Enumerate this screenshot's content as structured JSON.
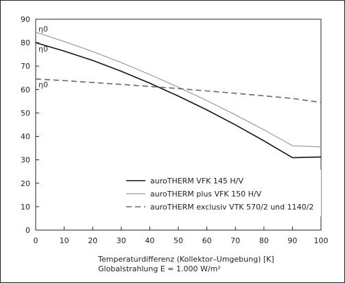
{
  "chart_data": {
    "type": "line",
    "title": "",
    "xlabel": "Temperaturdifferenz (Kollektor–Umgebung) [K]",
    "xlabel_line2": "Globalstrahlung E = 1.000 W/m²",
    "ylabel": "",
    "xlim": [
      0,
      100
    ],
    "ylim": [
      0,
      90
    ],
    "x_ticks": [
      "0",
      "10",
      "20",
      "30",
      "40",
      "50",
      "60",
      "70",
      "80",
      "90",
      "100"
    ],
    "y_ticks": [
      "0",
      "10",
      "20",
      "30",
      "40",
      "50",
      "60",
      "70",
      "80",
      "90"
    ],
    "grid": false,
    "legend_position": "lower-center",
    "series": [
      {
        "name": "auroTHERM VFK 145 H/V",
        "style": "solid",
        "color": "#111111",
        "x": [
          0,
          10,
          20,
          30,
          40,
          50,
          60,
          70,
          80,
          90,
          100
        ],
        "y": [
          80,
          76.4,
          72.4,
          67.8,
          62.7,
          57.2,
          51.3,
          44.9,
          38.1,
          30.9,
          31.2
        ]
      },
      {
        "name": "auroTHERM plus VFK 150 H/V",
        "style": "solid",
        "color": "#999999",
        "x": [
          0,
          10,
          20,
          30,
          40,
          50,
          60,
          70,
          80,
          90,
          100
        ],
        "y": [
          84.5,
          80.5,
          76.2,
          71.5,
          66.4,
          61.0,
          55.3,
          49.2,
          42.8,
          36.0,
          35.5
        ]
      },
      {
        "name": "auroTHERM exclusiv VTK 570/2 und 1140/2",
        "style": "dashed",
        "color": "#666666",
        "x": [
          0,
          10,
          20,
          30,
          40,
          50,
          60,
          70,
          80,
          90,
          100
        ],
        "y": [
          64.5,
          63.8,
          63.0,
          62.2,
          61.3,
          60.4,
          59.4,
          58.4,
          57.3,
          56.2,
          54.5
        ]
      }
    ],
    "annotations": [
      "η0",
      "η0",
      "η0"
    ]
  },
  "colors": {
    "axis": "#222222",
    "background": "#ffffff"
  }
}
